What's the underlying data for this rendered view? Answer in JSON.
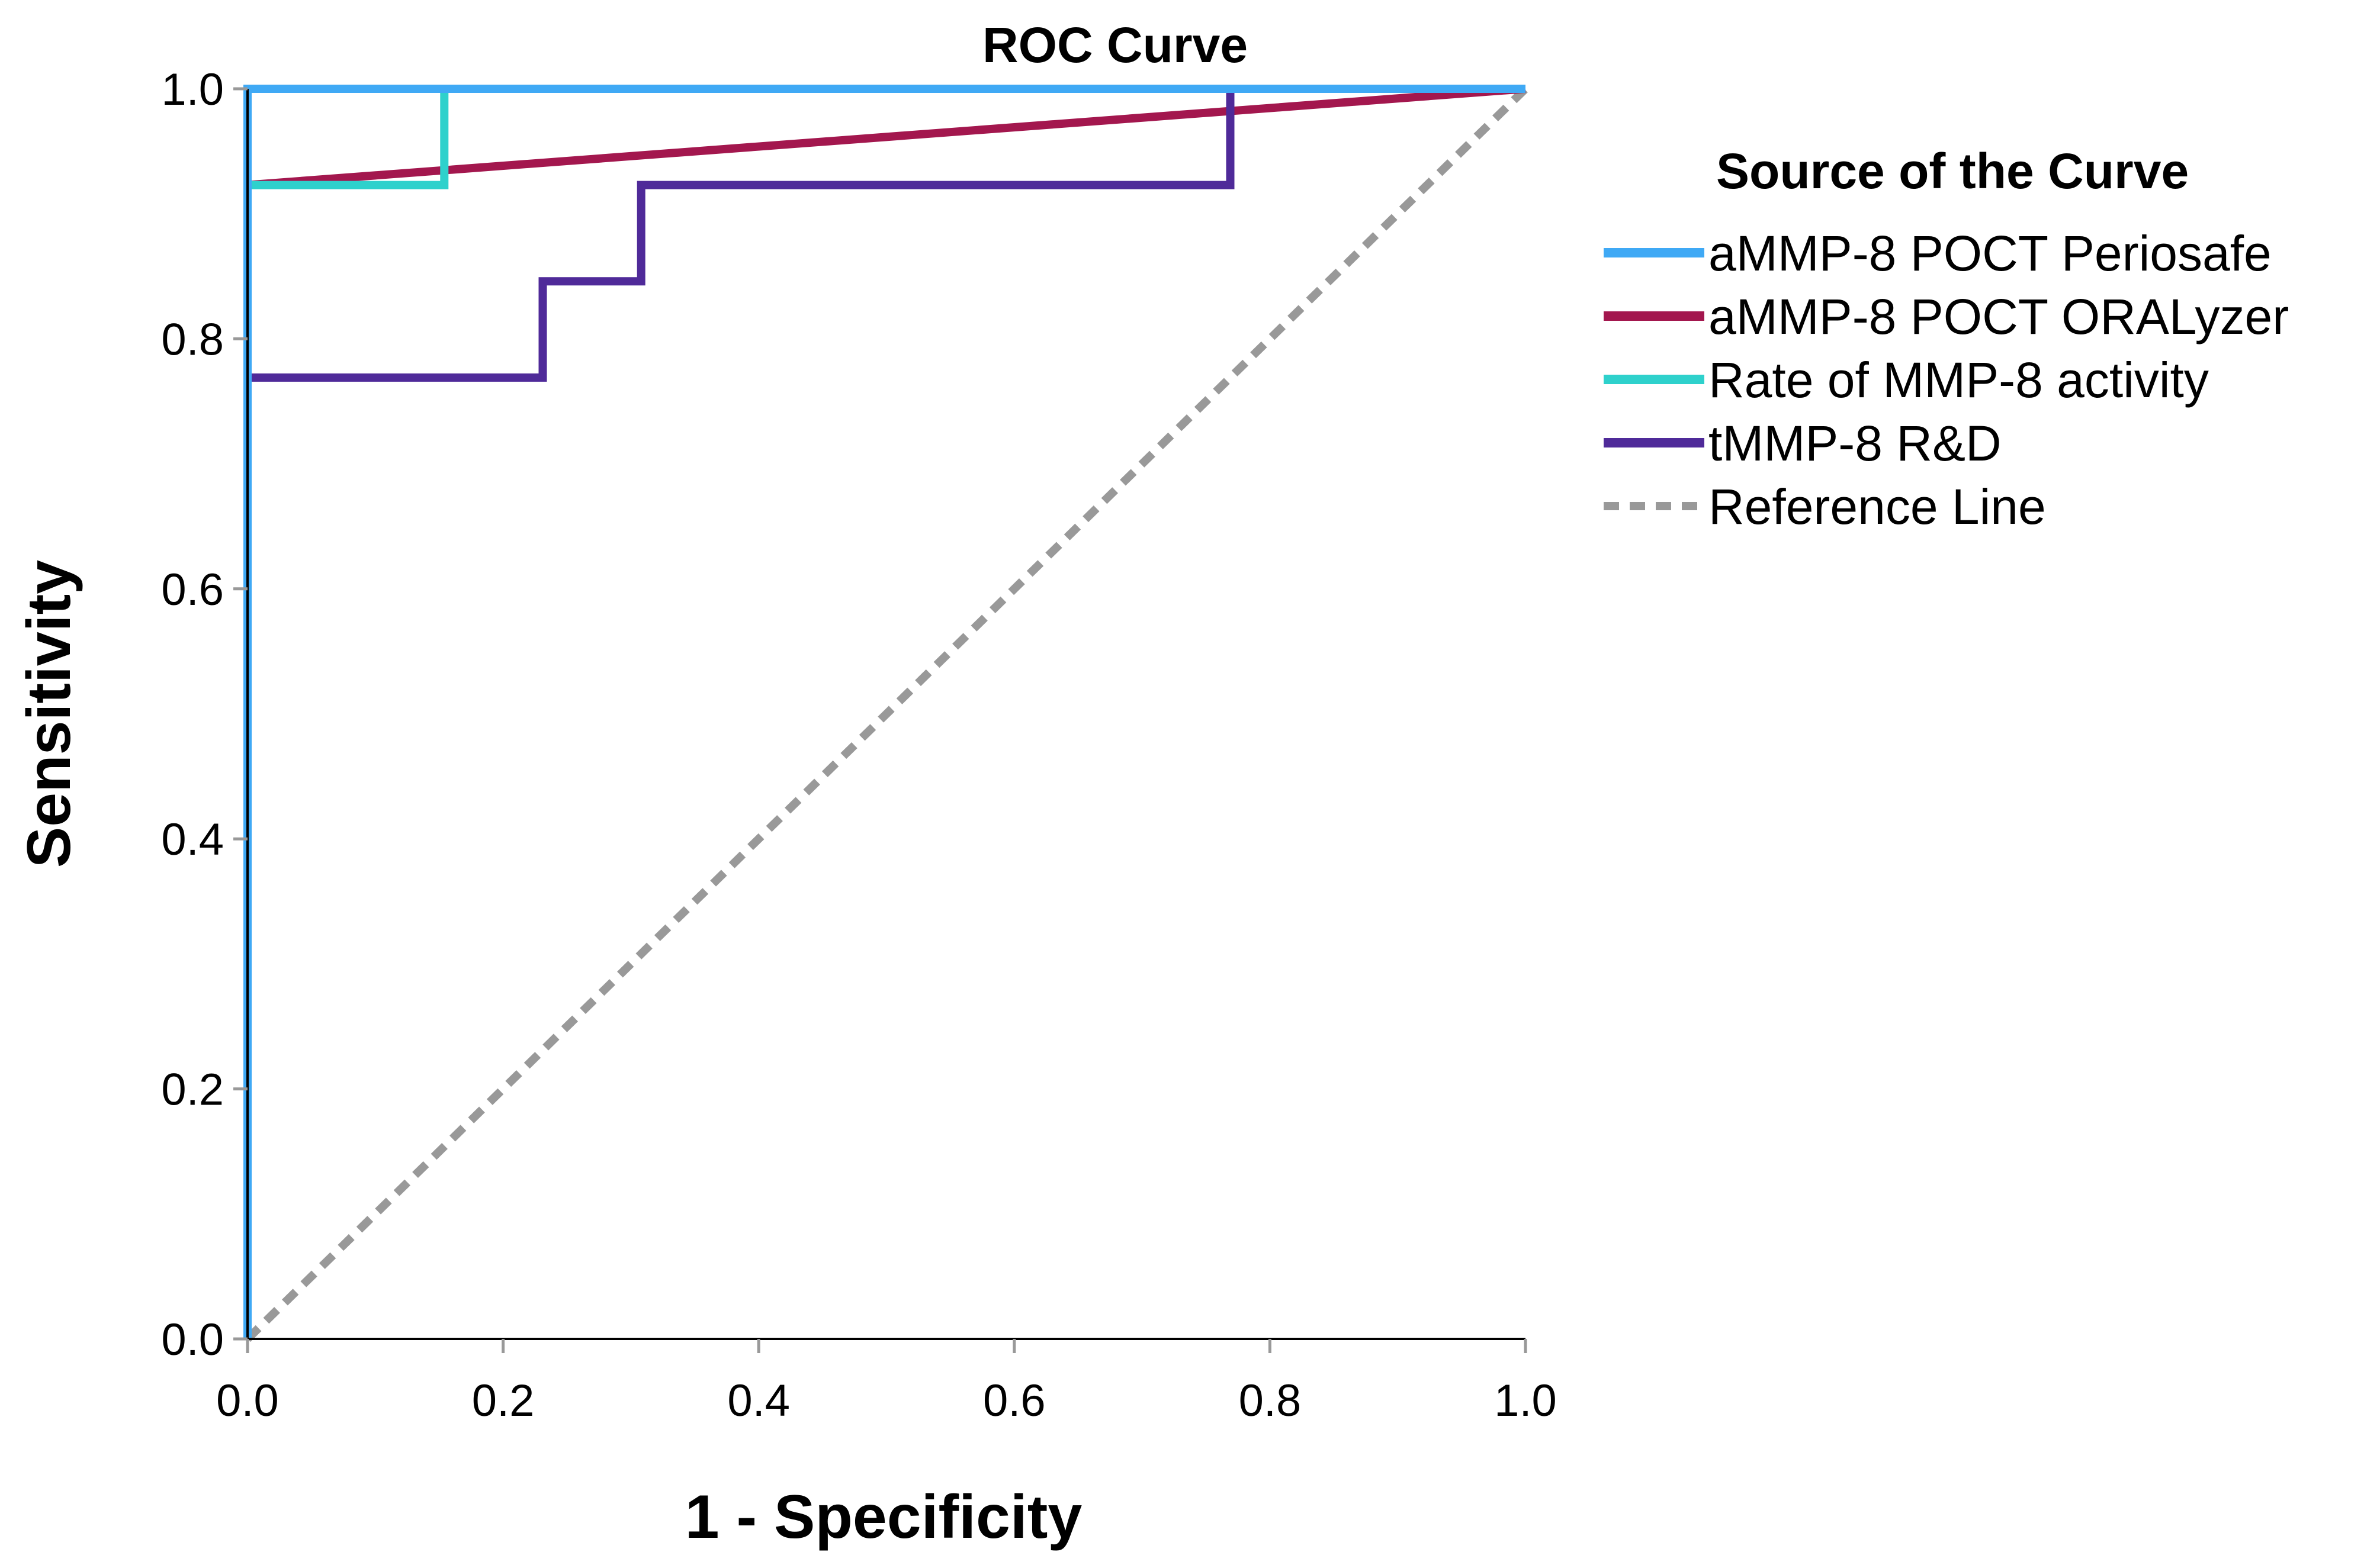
{
  "chart_data": {
    "type": "line",
    "title": "ROC Curve",
    "xlabel": "1 - Specificity",
    "ylabel": "Sensitivity",
    "xlim": [
      0,
      1
    ],
    "ylim": [
      0,
      1
    ],
    "grid": false,
    "x_ticks": [
      "0.0",
      "0.2",
      "0.4",
      "0.6",
      "0.8",
      "1.0"
    ],
    "y_ticks": [
      "0.0",
      "0.2",
      "0.4",
      "0.6",
      "0.8",
      "1.0"
    ],
    "legend": {
      "title": "Source of the Curve",
      "placement": "right"
    },
    "series": [
      {
        "name": "aMMP-8 POCT Periosafe",
        "color": "#3fa9f5",
        "style": "solid",
        "x": [
          0,
          0,
          1
        ],
        "y": [
          0,
          1,
          1
        ]
      },
      {
        "name": "aMMP-8 POCT ORALyzer",
        "color": "#a3174e",
        "style": "solid",
        "x": [
          0,
          0,
          1
        ],
        "y": [
          0,
          0.923,
          1
        ]
      },
      {
        "name": "Rate of MMP-8 activity",
        "color": "#2ed1cc",
        "style": "solid",
        "x": [
          0,
          0,
          0.154,
          0.154,
          1
        ],
        "y": [
          0,
          0.923,
          0.923,
          1,
          1
        ]
      },
      {
        "name": "tMMP-8 R&D",
        "color": "#4f2a99",
        "style": "solid",
        "x": [
          0,
          0,
          0.231,
          0.231,
          0.308,
          0.308,
          0.769,
          0.769,
          1
        ],
        "y": [
          0,
          0.769,
          0.769,
          0.846,
          0.846,
          0.923,
          0.923,
          1,
          1
        ]
      },
      {
        "name": "Reference Line",
        "color": "#999999",
        "style": "dashed",
        "x": [
          0,
          1
        ],
        "y": [
          0,
          1
        ]
      }
    ]
  }
}
